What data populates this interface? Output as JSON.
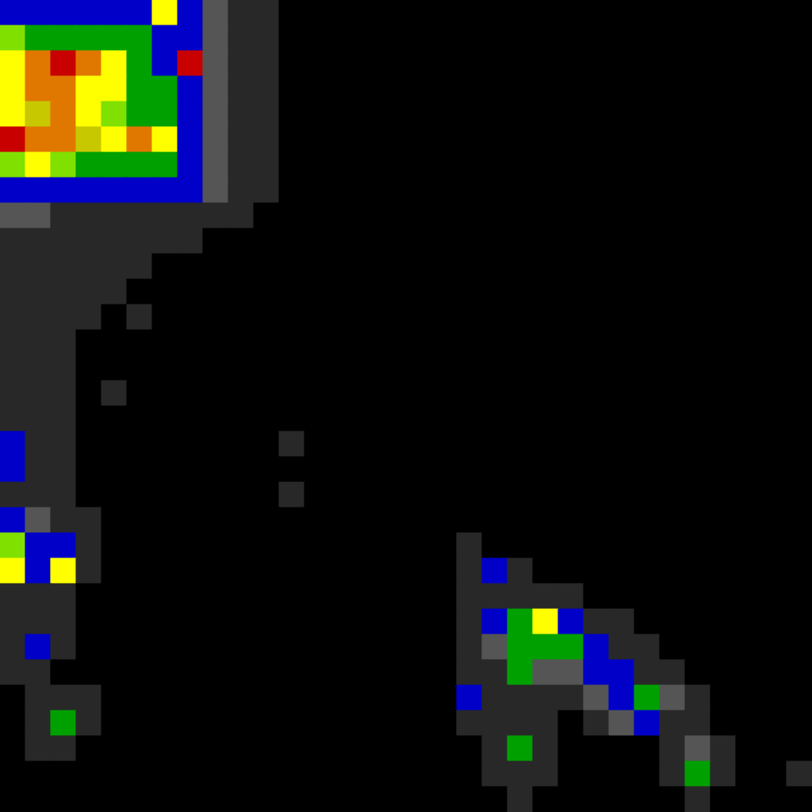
{
  "chart_data": {
    "type": "heatmap",
    "grid": false,
    "tick_labels": false,
    "xlim": [
      0,
      32
    ],
    "ylim": [
      0,
      32
    ],
    "cells": [
      [
        3,
        3,
        3,
        3,
        3,
        3,
        6,
        3,
        2,
        1,
        1,
        0,
        0,
        0,
        0,
        0,
        0,
        0,
        0,
        0,
        0,
        0,
        0,
        0,
        0,
        0,
        0,
        0,
        0,
        0,
        0,
        0
      ],
      [
        5,
        4,
        4,
        4,
        4,
        4,
        3,
        3,
        2,
        1,
        1,
        0,
        0,
        0,
        0,
        0,
        0,
        0,
        0,
        0,
        0,
        0,
        0,
        0,
        0,
        0,
        0,
        0,
        0,
        0,
        0,
        0
      ],
      [
        6,
        8,
        9,
        8,
        6,
        4,
        3,
        9,
        2,
        1,
        1,
        0,
        0,
        0,
        0,
        0,
        0,
        0,
        0,
        0,
        0,
        0,
        0,
        0,
        0,
        0,
        0,
        0,
        0,
        0,
        0,
        0
      ],
      [
        6,
        8,
        8,
        6,
        6,
        4,
        4,
        3,
        2,
        1,
        1,
        0,
        0,
        0,
        0,
        0,
        0,
        0,
        0,
        0,
        0,
        0,
        0,
        0,
        0,
        0,
        0,
        0,
        0,
        0,
        0,
        0
      ],
      [
        6,
        7,
        8,
        6,
        5,
        4,
        4,
        3,
        2,
        1,
        1,
        0,
        0,
        0,
        0,
        0,
        0,
        0,
        0,
        0,
        0,
        0,
        0,
        0,
        0,
        0,
        0,
        0,
        0,
        0,
        0,
        0
      ],
      [
        9,
        8,
        8,
        7,
        6,
        8,
        6,
        3,
        2,
        1,
        1,
        0,
        0,
        0,
        0,
        0,
        0,
        0,
        0,
        0,
        0,
        0,
        0,
        0,
        0,
        0,
        0,
        0,
        0,
        0,
        0,
        0
      ],
      [
        5,
        6,
        5,
        4,
        4,
        4,
        4,
        3,
        2,
        1,
        1,
        0,
        0,
        0,
        0,
        0,
        0,
        0,
        0,
        0,
        0,
        0,
        0,
        0,
        0,
        0,
        0,
        0,
        0,
        0,
        0,
        0
      ],
      [
        3,
        3,
        3,
        3,
        3,
        3,
        3,
        3,
        2,
        1,
        1,
        0,
        0,
        0,
        0,
        0,
        0,
        0,
        0,
        0,
        0,
        0,
        0,
        0,
        0,
        0,
        0,
        0,
        0,
        0,
        0,
        0
      ],
      [
        2,
        2,
        1,
        1,
        1,
        1,
        1,
        1,
        1,
        1,
        0,
        0,
        0,
        0,
        0,
        0,
        0,
        0,
        0,
        0,
        0,
        0,
        0,
        0,
        0,
        0,
        0,
        0,
        0,
        0,
        0,
        0
      ],
      [
        1,
        1,
        1,
        1,
        1,
        1,
        1,
        1,
        0,
        0,
        0,
        0,
        0,
        0,
        0,
        0,
        0,
        0,
        0,
        0,
        0,
        0,
        0,
        0,
        0,
        0,
        0,
        0,
        0,
        0,
        0,
        0
      ],
      [
        1,
        1,
        1,
        1,
        1,
        1,
        0,
        0,
        0,
        0,
        0,
        0,
        0,
        0,
        0,
        0,
        0,
        0,
        0,
        0,
        0,
        0,
        0,
        0,
        0,
        0,
        0,
        0,
        0,
        0,
        0,
        0
      ],
      [
        1,
        1,
        1,
        1,
        1,
        0,
        0,
        0,
        0,
        0,
        0,
        0,
        0,
        0,
        0,
        0,
        0,
        0,
        0,
        0,
        0,
        0,
        0,
        0,
        0,
        0,
        0,
        0,
        0,
        0,
        0,
        0
      ],
      [
        1,
        1,
        1,
        1,
        0,
        1,
        0,
        0,
        0,
        0,
        0,
        0,
        0,
        0,
        0,
        0,
        0,
        0,
        0,
        0,
        0,
        0,
        0,
        0,
        0,
        0,
        0,
        0,
        0,
        0,
        0,
        0
      ],
      [
        1,
        1,
        1,
        0,
        0,
        0,
        0,
        0,
        0,
        0,
        0,
        0,
        0,
        0,
        0,
        0,
        0,
        0,
        0,
        0,
        0,
        0,
        0,
        0,
        0,
        0,
        0,
        0,
        0,
        0,
        0,
        0
      ],
      [
        1,
        1,
        1,
        0,
        0,
        0,
        0,
        0,
        0,
        0,
        0,
        0,
        0,
        0,
        0,
        0,
        0,
        0,
        0,
        0,
        0,
        0,
        0,
        0,
        0,
        0,
        0,
        0,
        0,
        0,
        0,
        0
      ],
      [
        1,
        1,
        1,
        0,
        1,
        0,
        0,
        0,
        0,
        0,
        0,
        0,
        0,
        0,
        0,
        0,
        0,
        0,
        0,
        0,
        0,
        0,
        0,
        0,
        0,
        0,
        0,
        0,
        0,
        0,
        0,
        0
      ],
      [
        1,
        1,
        1,
        0,
        0,
        0,
        0,
        0,
        0,
        0,
        0,
        0,
        0,
        0,
        0,
        0,
        0,
        0,
        0,
        0,
        0,
        0,
        0,
        0,
        0,
        0,
        0,
        0,
        0,
        0,
        0,
        0
      ],
      [
        3,
        1,
        1,
        0,
        0,
        0,
        0,
        0,
        0,
        0,
        0,
        1,
        0,
        0,
        0,
        0,
        0,
        0,
        0,
        0,
        0,
        0,
        0,
        0,
        0,
        0,
        0,
        0,
        0,
        0,
        0,
        0
      ],
      [
        3,
        1,
        1,
        0,
        0,
        0,
        0,
        0,
        0,
        0,
        0,
        0,
        0,
        0,
        0,
        0,
        0,
        0,
        0,
        0,
        0,
        0,
        0,
        0,
        0,
        0,
        0,
        0,
        0,
        0,
        0,
        0
      ],
      [
        1,
        1,
        1,
        0,
        0,
        0,
        0,
        0,
        0,
        0,
        0,
        1,
        0,
        0,
        0,
        0,
        0,
        0,
        0,
        0,
        0,
        0,
        0,
        0,
        0,
        0,
        0,
        0,
        0,
        0,
        0,
        0
      ],
      [
        3,
        2,
        1,
        1,
        0,
        0,
        0,
        0,
        0,
        0,
        0,
        0,
        0,
        0,
        0,
        0,
        0,
        0,
        0,
        0,
        0,
        0,
        0,
        0,
        0,
        0,
        0,
        0,
        0,
        0,
        0,
        0
      ],
      [
        5,
        3,
        3,
        1,
        0,
        0,
        0,
        0,
        0,
        0,
        0,
        0,
        0,
        0,
        0,
        0,
        0,
        0,
        1,
        0,
        0,
        0,
        0,
        0,
        0,
        0,
        0,
        0,
        0,
        0,
        0,
        0
      ],
      [
        6,
        3,
        6,
        1,
        0,
        0,
        0,
        0,
        0,
        0,
        0,
        0,
        0,
        0,
        0,
        0,
        0,
        0,
        1,
        3,
        1,
        0,
        0,
        0,
        0,
        0,
        0,
        0,
        0,
        0,
        0,
        0
      ],
      [
        1,
        1,
        1,
        0,
        0,
        0,
        0,
        0,
        0,
        0,
        0,
        0,
        0,
        0,
        0,
        0,
        0,
        0,
        1,
        1,
        1,
        1,
        1,
        0,
        0,
        0,
        0,
        0,
        0,
        0,
        0,
        0
      ],
      [
        1,
        1,
        1,
        0,
        0,
        0,
        0,
        0,
        0,
        0,
        0,
        0,
        0,
        0,
        0,
        0,
        0,
        0,
        1,
        3,
        4,
        6,
        3,
        1,
        1,
        0,
        0,
        0,
        0,
        0,
        0,
        0
      ],
      [
        1,
        3,
        1,
        0,
        0,
        0,
        0,
        0,
        0,
        0,
        0,
        0,
        0,
        0,
        0,
        0,
        0,
        0,
        1,
        2,
        4,
        4,
        4,
        3,
        1,
        1,
        0,
        0,
        0,
        0,
        0,
        0
      ],
      [
        1,
        1,
        0,
        0,
        0,
        0,
        0,
        0,
        0,
        0,
        0,
        0,
        0,
        0,
        0,
        0,
        0,
        0,
        1,
        1,
        4,
        2,
        2,
        3,
        3,
        1,
        1,
        0,
        0,
        0,
        0,
        0
      ],
      [
        0,
        1,
        1,
        1,
        0,
        0,
        0,
        0,
        0,
        0,
        0,
        0,
        0,
        0,
        0,
        0,
        0,
        0,
        3,
        1,
        1,
        1,
        1,
        2,
        3,
        4,
        2,
        1,
        0,
        0,
        0,
        0
      ],
      [
        0,
        1,
        4,
        1,
        0,
        0,
        0,
        0,
        0,
        0,
        0,
        0,
        0,
        0,
        0,
        0,
        0,
        0,
        1,
        1,
        1,
        1,
        0,
        1,
        2,
        3,
        1,
        1,
        0,
        0,
        0,
        0
      ],
      [
        0,
        1,
        1,
        0,
        0,
        0,
        0,
        0,
        0,
        0,
        0,
        0,
        0,
        0,
        0,
        0,
        0,
        0,
        0,
        1,
        4,
        1,
        0,
        0,
        0,
        0,
        1,
        2,
        1,
        0,
        0,
        0
      ],
      [
        0,
        0,
        0,
        0,
        0,
        0,
        0,
        0,
        0,
        0,
        0,
        0,
        0,
        0,
        0,
        0,
        0,
        0,
        0,
        1,
        1,
        1,
        0,
        0,
        0,
        0,
        1,
        4,
        1,
        0,
        0,
        1
      ],
      [
        0,
        0,
        0,
        0,
        0,
        0,
        0,
        0,
        0,
        0,
        0,
        0,
        0,
        0,
        0,
        0,
        0,
        0,
        0,
        0,
        1,
        0,
        0,
        0,
        0,
        0,
        0,
        1,
        0,
        0,
        0,
        0
      ]
    ]
  }
}
